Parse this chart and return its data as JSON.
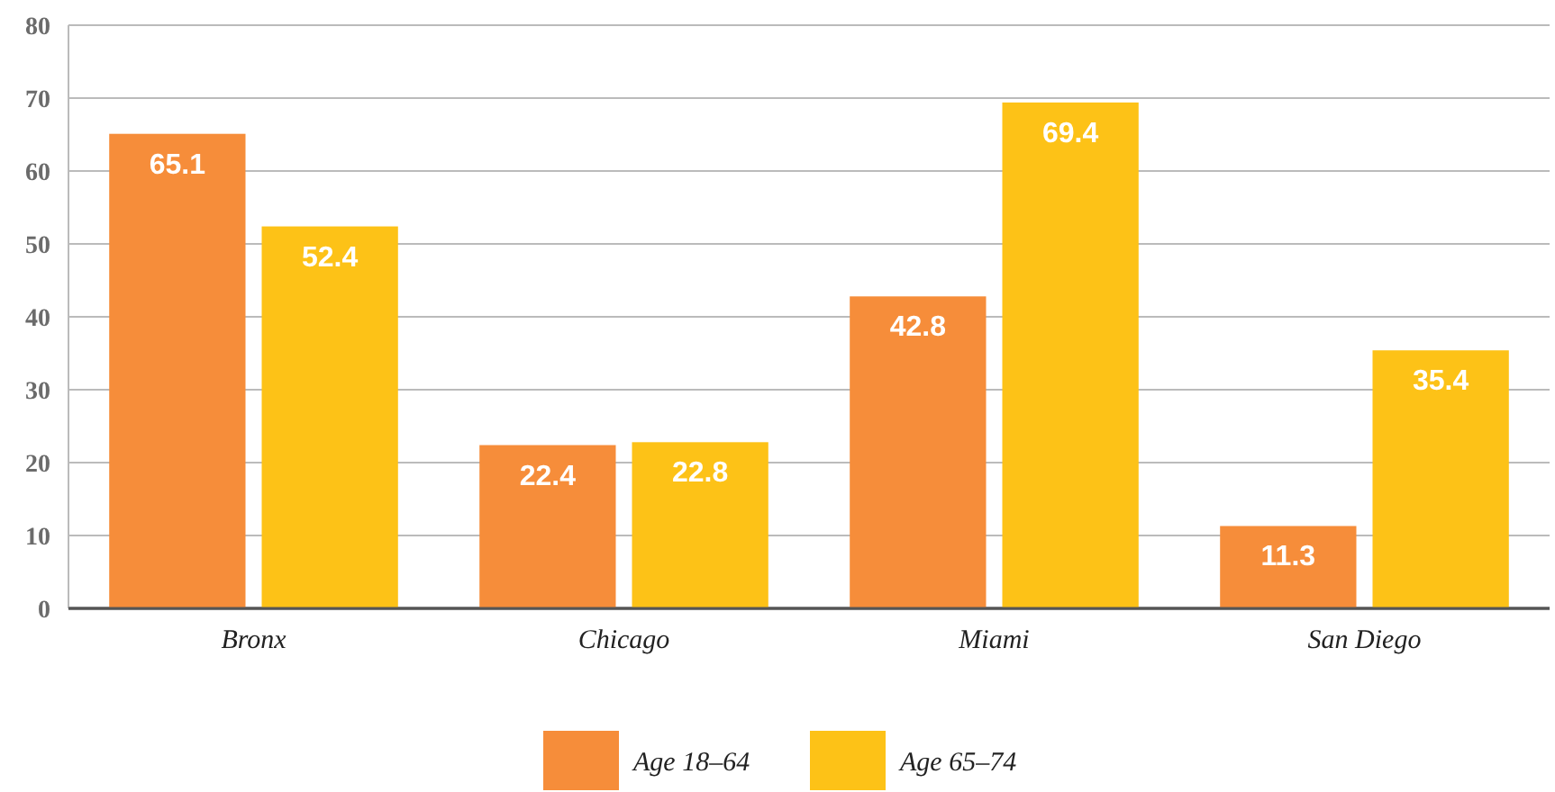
{
  "chart_data": {
    "type": "bar",
    "categories": [
      "Bronx",
      "Chicago",
      "Miami",
      "San Diego"
    ],
    "series": [
      {
        "name": "Age 18–64",
        "color": "#f68d3a",
        "values": [
          65.1,
          22.4,
          42.8,
          11.3
        ]
      },
      {
        "name": "Age 65–74",
        "color": "#fdc217",
        "values": [
          52.4,
          22.8,
          69.4,
          35.4
        ]
      }
    ],
    "ylim": [
      0,
      80
    ],
    "yticks": [
      0,
      10,
      20,
      30,
      40,
      50,
      60,
      70,
      80
    ],
    "grid": "y",
    "legend": "bottom",
    "data_labels": true
  }
}
